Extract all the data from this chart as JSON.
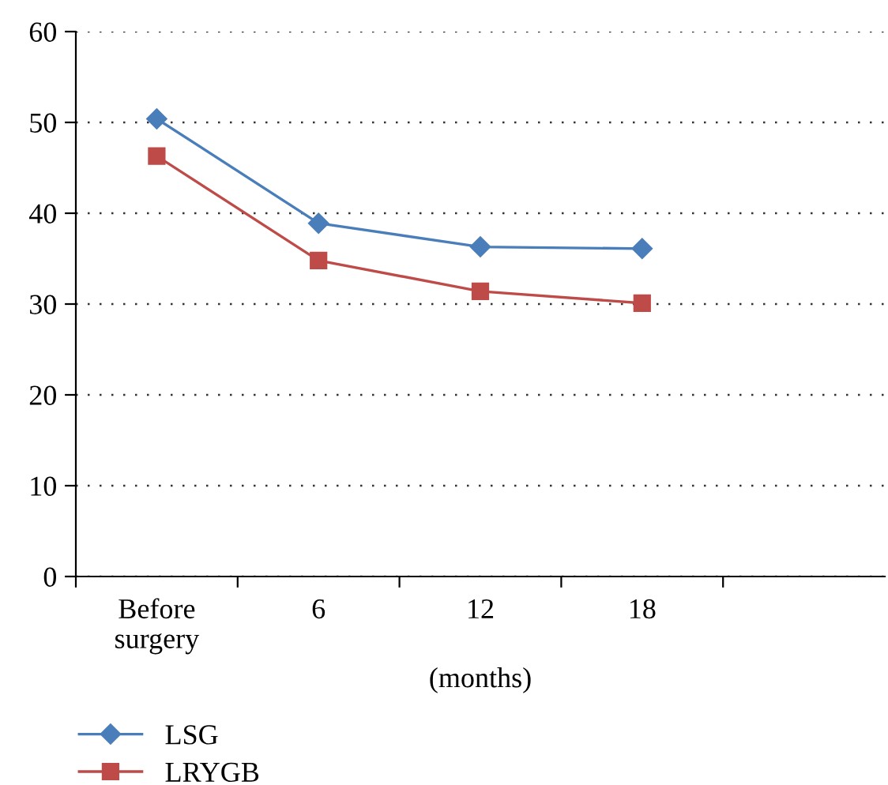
{
  "chart_data": {
    "type": "line",
    "xlabel": "(months)",
    "categories": [
      "Before\nsurgery",
      "6",
      "12",
      "18",
      null
    ],
    "series": [
      {
        "name": "LSG",
        "color": "#4a7ebb",
        "marker": "diamond",
        "values": [
          50.4,
          38.9,
          36.3,
          36.1,
          null
        ]
      },
      {
        "name": "LRYGB",
        "color": "#be4b48",
        "marker": "square",
        "values": [
          46.3,
          34.8,
          31.4,
          30.1,
          null
        ]
      }
    ],
    "ylim": [
      0,
      60
    ],
    "yticks": [
      0,
      10,
      20,
      30,
      40,
      50,
      60
    ],
    "grid": "y",
    "legend": "bottom left",
    "line_style": "solid"
  }
}
